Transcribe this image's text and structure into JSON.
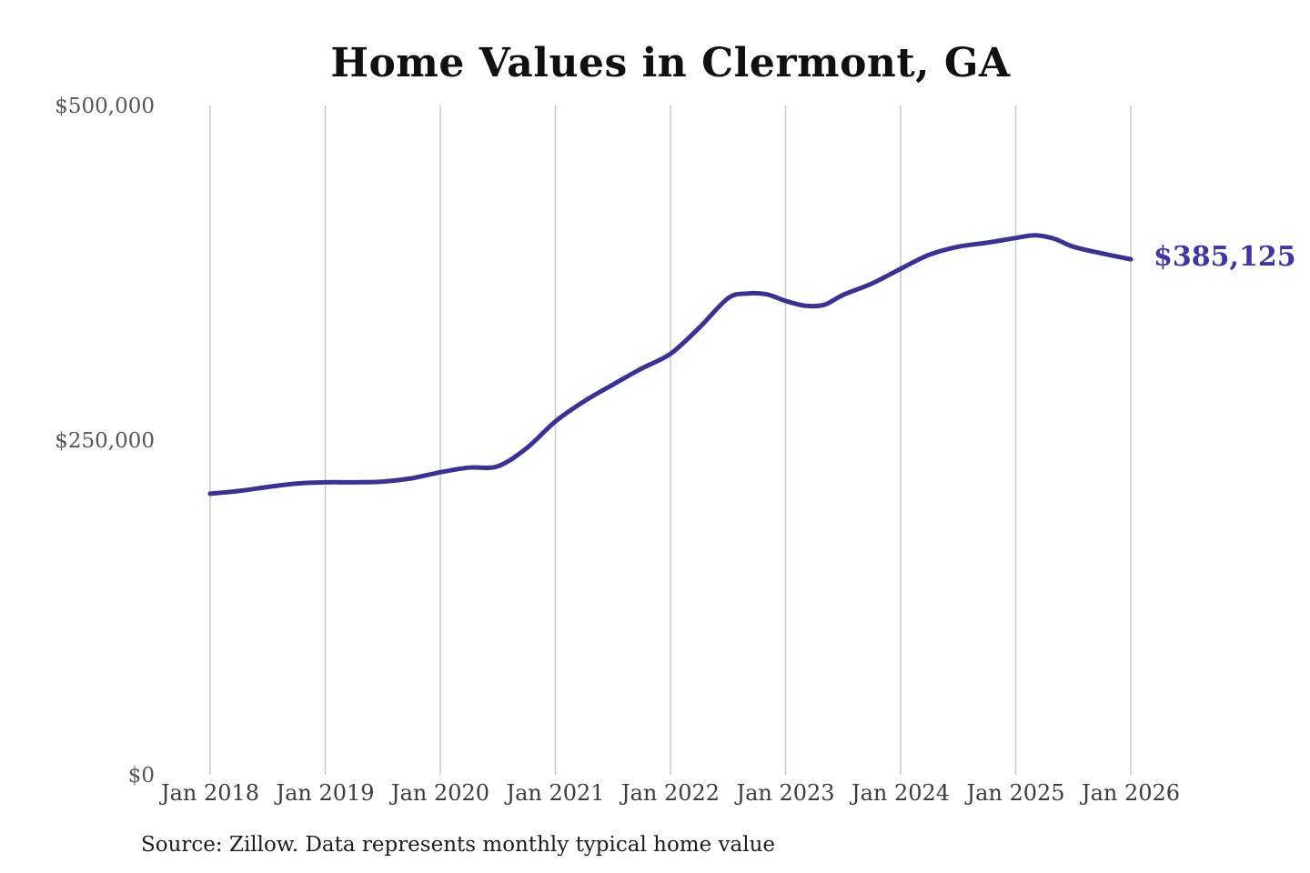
{
  "chart_data": {
    "type": "line",
    "title": "Home Values in Clermont, GA",
    "series_name": "Monthly typical home value",
    "x_range_years": [
      2018,
      2026
    ],
    "ylim": [
      0,
      500000
    ],
    "grid": "vertical-only",
    "legend": "none",
    "x_ticks": [
      "Jan 2018",
      "Jan 2019",
      "Jan 2020",
      "Jan 2021",
      "Jan 2022",
      "Jan 2023",
      "Jan 2024",
      "Jan 2025",
      "Jan 2026"
    ],
    "y_ticks": [
      {
        "label": "$0",
        "value": 0
      },
      {
        "label": "$250,000",
        "value": 250000
      },
      {
        "label": "$500,000",
        "value": 500000
      }
    ],
    "points": [
      {
        "date": "2018-01",
        "value": 210000
      },
      {
        "date": "2018-04",
        "value": 212000
      },
      {
        "date": "2018-07",
        "value": 215000
      },
      {
        "date": "2018-10",
        "value": 217500
      },
      {
        "date": "2019-01",
        "value": 218500
      },
      {
        "date": "2019-04",
        "value": 218500
      },
      {
        "date": "2019-07",
        "value": 219000
      },
      {
        "date": "2019-10",
        "value": 221500
      },
      {
        "date": "2020-01",
        "value": 226000
      },
      {
        "date": "2020-04",
        "value": 229500
      },
      {
        "date": "2020-07",
        "value": 230500
      },
      {
        "date": "2020-10",
        "value": 244000
      },
      {
        "date": "2021-01",
        "value": 264000
      },
      {
        "date": "2021-04",
        "value": 279000
      },
      {
        "date": "2021-07",
        "value": 291500
      },
      {
        "date": "2021-10",
        "value": 303500
      },
      {
        "date": "2022-01",
        "value": 314500
      },
      {
        "date": "2022-04",
        "value": 334000
      },
      {
        "date": "2022-07",
        "value": 356000
      },
      {
        "date": "2022-09",
        "value": 359500
      },
      {
        "date": "2022-11",
        "value": 359000
      },
      {
        "date": "2023-01",
        "value": 354000
      },
      {
        "date": "2023-03",
        "value": 350500
      },
      {
        "date": "2023-05",
        "value": 351000
      },
      {
        "date": "2023-07",
        "value": 358500
      },
      {
        "date": "2023-10",
        "value": 367000
      },
      {
        "date": "2024-01",
        "value": 378000
      },
      {
        "date": "2024-04",
        "value": 388500
      },
      {
        "date": "2024-07",
        "value": 394500
      },
      {
        "date": "2024-10",
        "value": 397500
      },
      {
        "date": "2025-01",
        "value": 401000
      },
      {
        "date": "2025-03",
        "value": 403000
      },
      {
        "date": "2025-05",
        "value": 400500
      },
      {
        "date": "2025-07",
        "value": 394500
      },
      {
        "date": "2025-10",
        "value": 389500
      },
      {
        "date": "2026-01",
        "value": 385125
      }
    ],
    "latest_value": 385125,
    "end_label": "$385,125",
    "source": "Source: Zillow. Data represents monthly typical home value",
    "colors": {
      "line": "#3a3191",
      "end_label": "#3d37a0",
      "gridline": "#cccccc",
      "y_tick": "#55565c",
      "x_tick": "#3c3c3c",
      "title": "#101010",
      "source": "#1c1c1c",
      "background": "#ffffff"
    }
  }
}
